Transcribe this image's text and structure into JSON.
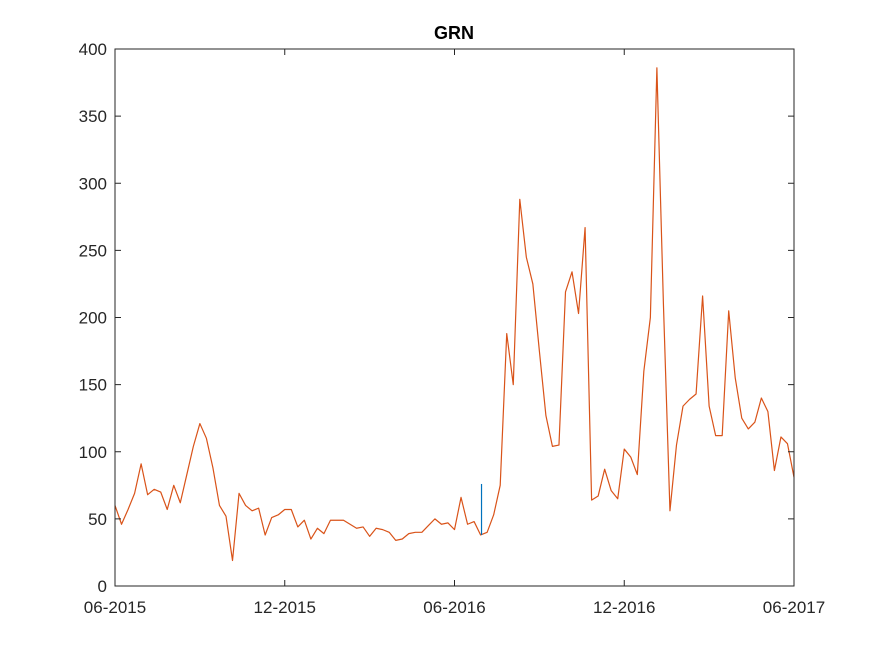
{
  "chart_data": {
    "type": "line",
    "title": "GRN",
    "xlabel": "",
    "ylabel": "",
    "x_tick_labels": [
      "06-2015",
      "12-2015",
      "06-2016",
      "12-2016",
      "06-2017"
    ],
    "y_tick_labels": [
      "0",
      "50",
      "100",
      "150",
      "200",
      "250",
      "300",
      "350",
      "400"
    ],
    "xlim": [
      "06-2015",
      "06-2017"
    ],
    "ylim": [
      0,
      400
    ],
    "grid": false,
    "series": [
      {
        "color": "#D95319",
        "values": [
          60,
          46,
          57,
          69,
          91,
          68,
          72,
          70,
          57,
          75,
          62,
          83,
          104,
          121,
          110,
          88,
          60,
          52,
          19,
          69,
          60,
          56,
          58,
          38,
          51,
          53,
          57,
          57,
          44,
          49,
          35,
          43,
          39,
          49,
          49,
          49,
          46,
          43,
          44,
          37,
          43,
          42,
          40,
          34,
          35,
          39,
          40,
          40,
          45,
          50,
          46,
          47,
          42,
          66,
          46,
          48,
          38,
          40,
          53,
          75,
          188,
          150,
          288,
          245,
          225,
          175,
          127,
          104,
          105,
          219,
          234,
          203,
          267,
          64,
          67,
          87,
          71,
          65,
          102,
          96,
          83,
          160,
          200,
          386,
          210,
          56,
          105,
          134,
          139,
          143,
          216,
          134,
          112,
          112,
          205,
          155,
          125,
          117,
          122,
          140,
          130,
          86,
          111,
          106,
          81
        ]
      },
      {
        "color": "#0072BD",
        "marker": "vertical-segment",
        "position_fraction": 0.5398,
        "range": [
          38,
          76
        ]
      }
    ]
  }
}
